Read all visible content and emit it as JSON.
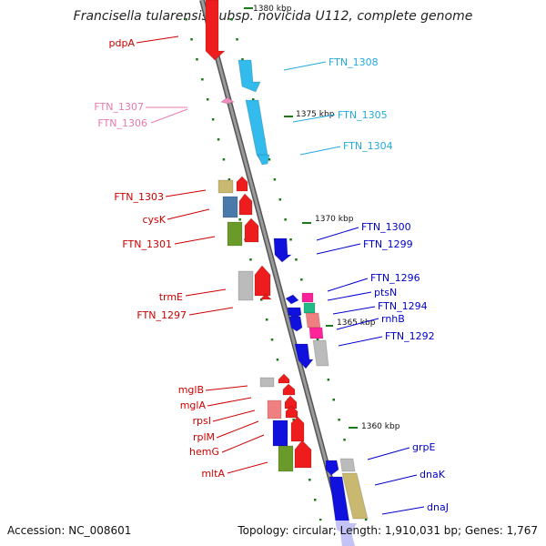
{
  "title": "Francisella tularensis subsp. novicida U112, complete genome",
  "footer": {
    "accession": "Accession: NC_008601",
    "topology": "Topology: circular; Length: 1,910,031 bp; Genes: 1,767"
  },
  "colors": {
    "backbone": "#8a8a8a",
    "forward_label": "#cc0000",
    "reverse_label": "#0000cc",
    "cyan_label": "#22aadd",
    "pink_label": "#e87ab0",
    "tick": "#1a7a1a"
  },
  "kbp_marks": [
    {
      "label": "1380 kbp"
    },
    {
      "label": "1375 kbp"
    },
    {
      "label": "1370 kbp"
    },
    {
      "label": "1365 kbp"
    },
    {
      "label": "1360 kbp"
    }
  ],
  "genes": [
    {
      "name": "pdpA",
      "strand": "forward",
      "color": "#ee1c1c"
    },
    {
      "name": "FTN_1308",
      "strand": "reverse",
      "color": "#33bbee"
    },
    {
      "name": "FTN_1307",
      "strand": "forward",
      "color": "#f08cc0"
    },
    {
      "name": "FTN_1306",
      "strand": "forward",
      "color": "#f08cc0"
    },
    {
      "name": "FTN_1305",
      "strand": "reverse",
      "color": "#33bbee"
    },
    {
      "name": "FTN_1304",
      "strand": "reverse",
      "color": "#33bbee"
    },
    {
      "name": "FTN_1303",
      "strand": "forward",
      "color": "#c8b870"
    },
    {
      "name": "cysK",
      "strand": "forward",
      "color": "#4a7aaa"
    },
    {
      "name": "FTN_1301",
      "strand": "forward",
      "color": "#6a9a2a"
    },
    {
      "name": "FTN_1300",
      "strand": "reverse",
      "color": "#1111dd"
    },
    {
      "name": "FTN_1299",
      "strand": "reverse",
      "color": "#1111dd"
    },
    {
      "name": "trmE",
      "strand": "forward",
      "color": "#bbbbbb"
    },
    {
      "name": "FTN_1297",
      "strand": "forward",
      "color": "#ee1c1c"
    },
    {
      "name": "FTN_1296",
      "strand": "reverse",
      "color": "#1111dd"
    },
    {
      "name": "ptsN",
      "strand": "reverse",
      "color": "#22bb88"
    },
    {
      "name": "FTN_1294",
      "strand": "reverse",
      "color": "#f08080"
    },
    {
      "name": "rnhB",
      "strand": "reverse",
      "color": "#ff2299"
    },
    {
      "name": "FTN_1292",
      "strand": "reverse",
      "color": "#1111dd"
    },
    {
      "name": "mglB",
      "strand": "forward",
      "color": "#bbbbbb"
    },
    {
      "name": "mglA",
      "strand": "forward",
      "color": "#f08080"
    },
    {
      "name": "rpsI",
      "strand": "forward",
      "color": "#ee1c1c"
    },
    {
      "name": "rplM",
      "strand": "forward",
      "color": "#1111dd"
    },
    {
      "name": "hemG",
      "strand": "forward",
      "color": "#6a9a2a"
    },
    {
      "name": "mltA",
      "strand": "forward",
      "color": "#ee1c1c"
    },
    {
      "name": "grpE",
      "strand": "reverse",
      "color": "#bbbbbb"
    },
    {
      "name": "dnaK",
      "strand": "reverse",
      "color": "#c8b870"
    },
    {
      "name": "dnaJ",
      "strand": "reverse",
      "color": "#1111dd"
    }
  ]
}
